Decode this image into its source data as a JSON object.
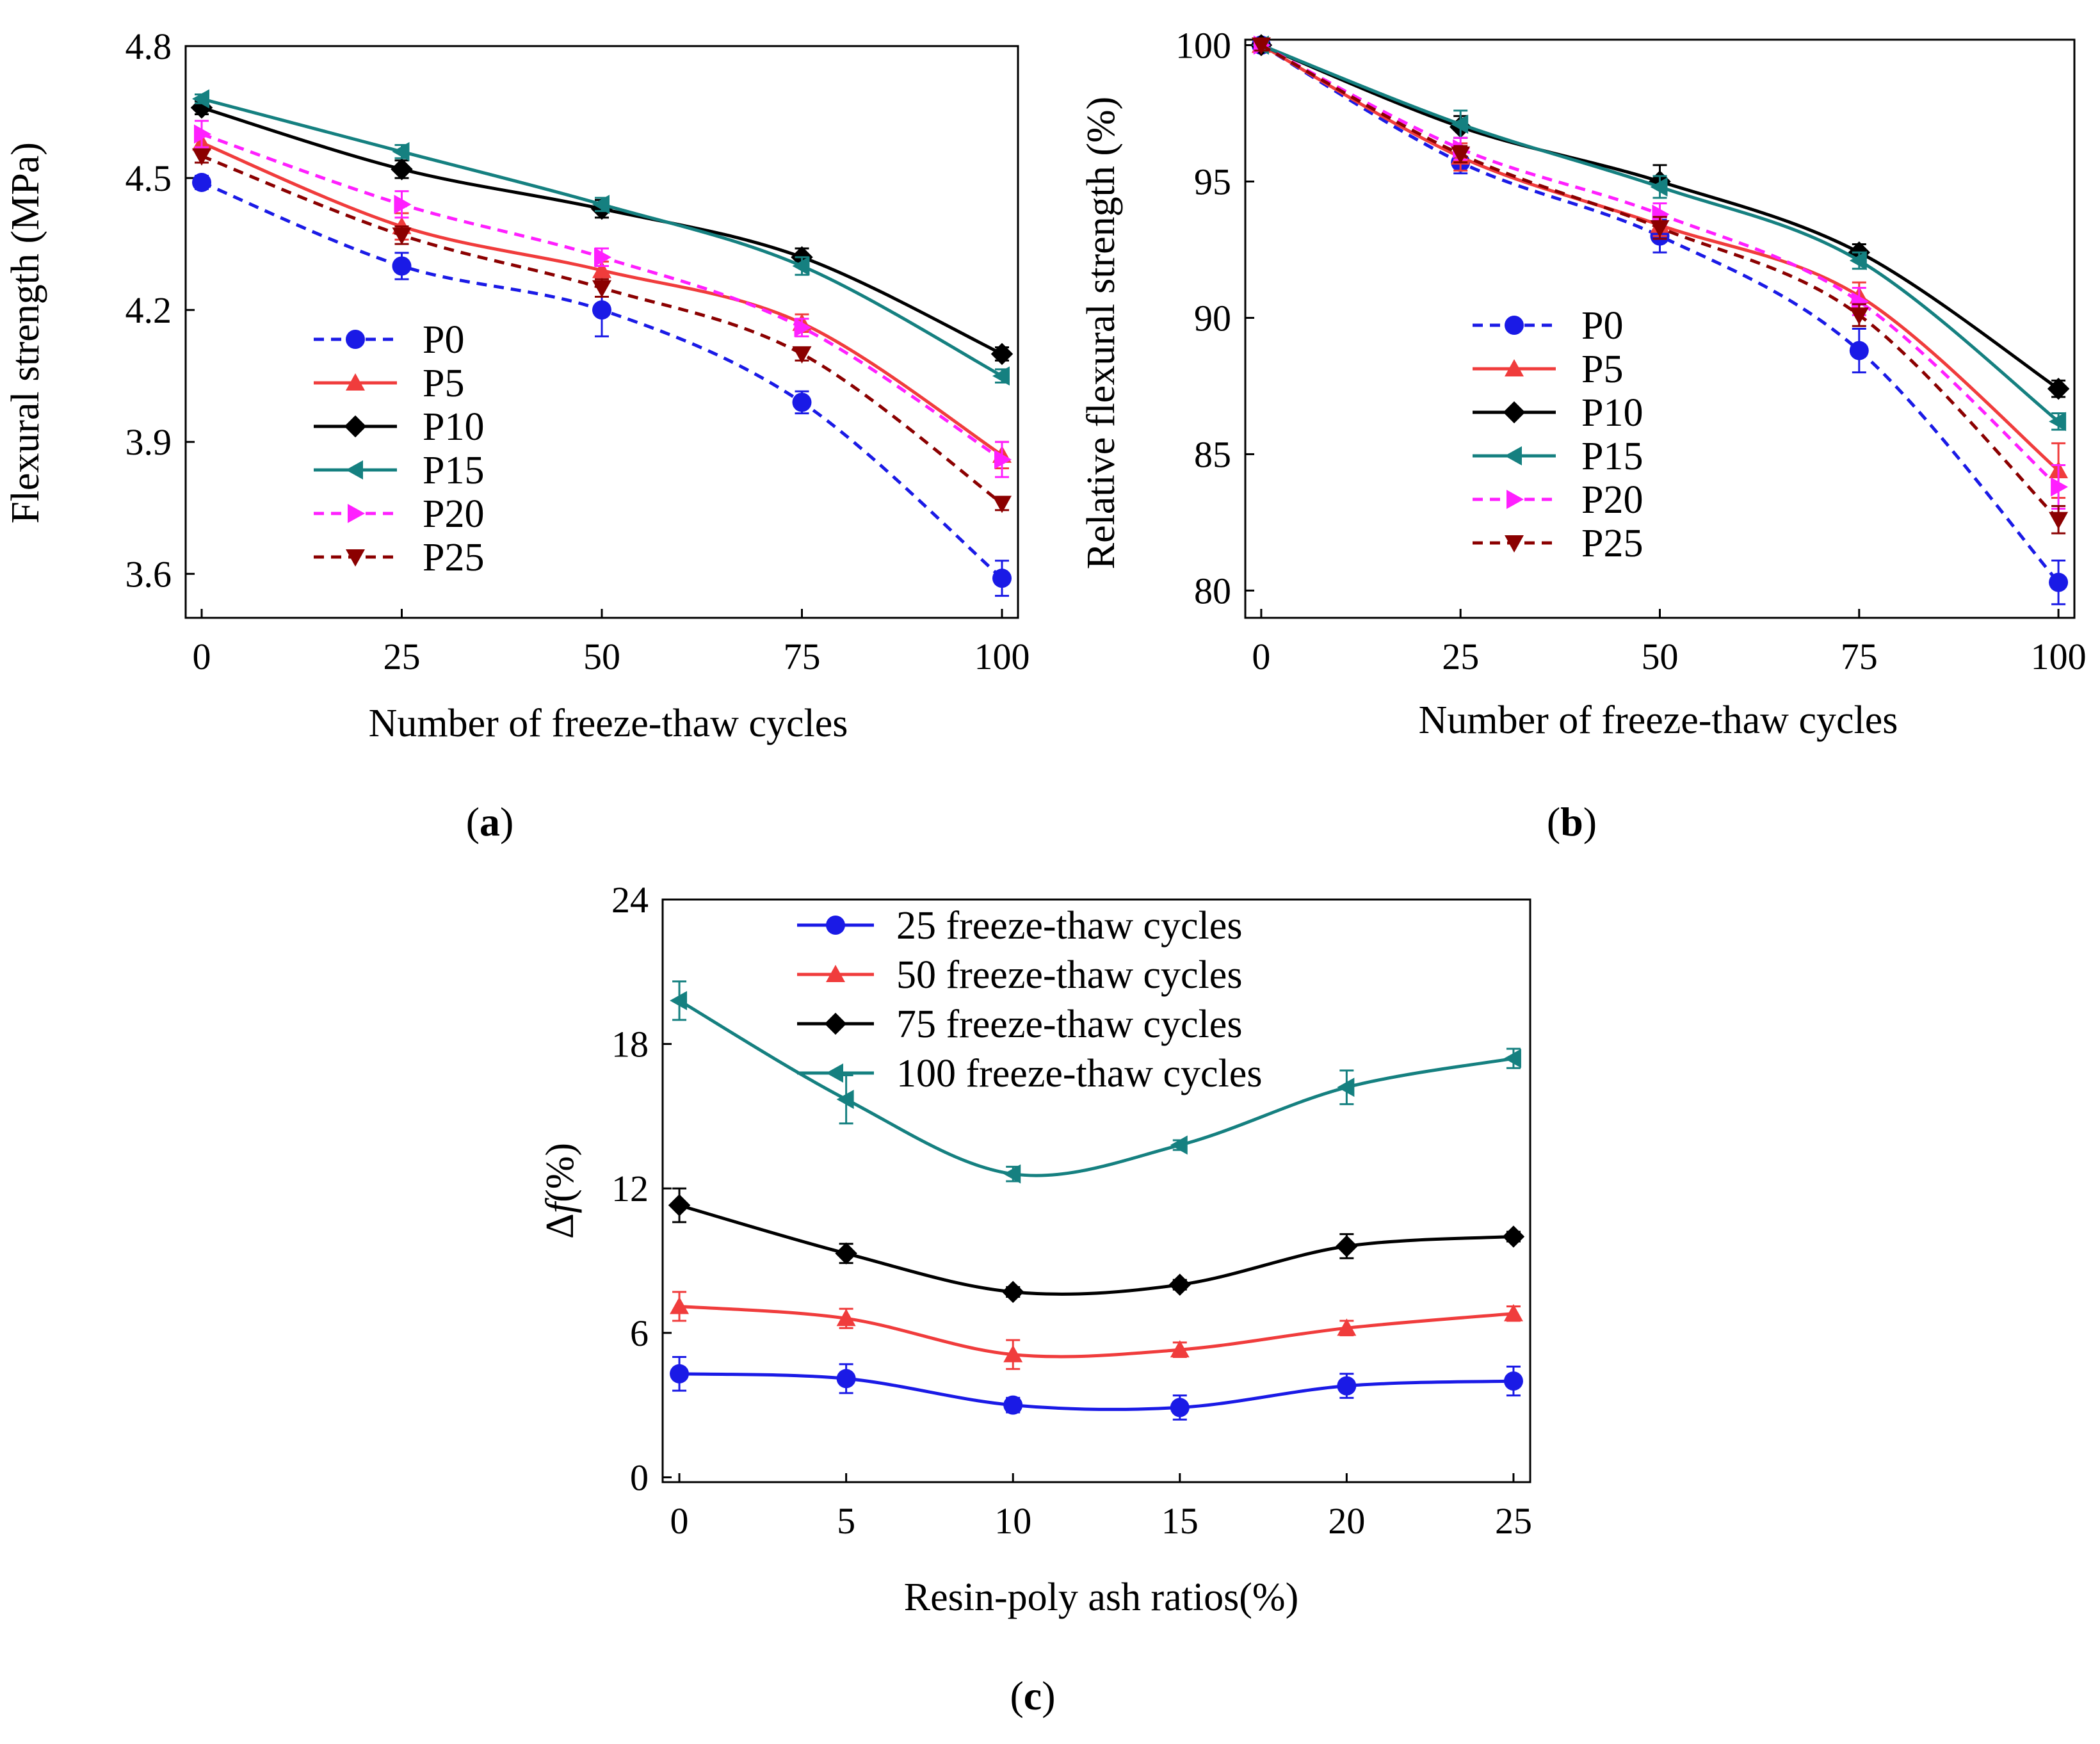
{
  "colors": {
    "P0": "#1a1ae6",
    "P5": "#f03c3c",
    "P10": "#000000",
    "P15": "#158080",
    "P20": "#ff1fff",
    "P25": "#8b0000"
  },
  "chart_data": [
    {
      "panel": "a",
      "type": "line",
      "xlabel": "Number of freeze-thaw cycles",
      "ylabel": "Flexural strength (MPa)",
      "xlim": [
        -2,
        102
      ],
      "ylim": [
        3.5,
        4.8
      ],
      "xticks": [
        0,
        25,
        50,
        75,
        100
      ],
      "yticks": [
        3.6,
        3.9,
        4.2,
        4.5,
        4.8
      ],
      "xtick_labels": [
        "0",
        "25",
        "50",
        "75",
        "100"
      ],
      "ytick_labels": [
        "3.6",
        "3.9",
        "4.2",
        "4.5",
        "4.8"
      ],
      "legend_position": "lower-left",
      "x": [
        0,
        25,
        50,
        75,
        100
      ],
      "series": [
        {
          "name": "P0",
          "color": "#1a1ae6",
          "marker": "circle",
          "dashed": true,
          "values": [
            4.49,
            4.3,
            4.2,
            3.99,
            3.59
          ],
          "errors": [
            0.015,
            0.03,
            0.06,
            0.025,
            0.04
          ]
        },
        {
          "name": "P5",
          "color": "#f03c3c",
          "marker": "triangle-up",
          "dashed": false,
          "values": [
            4.58,
            4.39,
            4.29,
            4.17,
            3.87
          ],
          "errors": [
            0.02,
            0.03,
            0.02,
            0.02,
            0.03
          ]
        },
        {
          "name": "P10",
          "color": "#000000",
          "marker": "diamond",
          "dashed": false,
          "values": [
            4.66,
            4.52,
            4.43,
            4.32,
            4.1
          ],
          "errors": [
            0.015,
            0.02,
            0.02,
            0.02,
            0.015
          ]
        },
        {
          "name": "P15",
          "color": "#158080",
          "marker": "triangle-left",
          "dashed": false,
          "values": [
            4.68,
            4.56,
            4.44,
            4.3,
            4.05
          ],
          "errors": [
            0.01,
            0.015,
            0.015,
            0.02,
            0.015
          ]
        },
        {
          "name": "P20",
          "color": "#ff1fff",
          "marker": "triangle-right",
          "dashed": true,
          "values": [
            4.6,
            4.44,
            4.32,
            4.16,
            3.86
          ],
          "errors": [
            0.03,
            0.03,
            0.02,
            0.02,
            0.04
          ]
        },
        {
          "name": "P25",
          "color": "#8b0000",
          "marker": "triangle-down",
          "dashed": true,
          "values": [
            4.55,
            4.37,
            4.25,
            4.1,
            3.76
          ],
          "errors": [
            0.015,
            0.02,
            0.02,
            0.015,
            0.015
          ]
        }
      ],
      "panel_label": "(a)"
    },
    {
      "panel": "b",
      "type": "line",
      "xlabel": "Number of freeze-thaw cycles",
      "ylabel": "Relative flexural strength (%)",
      "xlim": [
        -2,
        102
      ],
      "ylim": [
        79,
        100.2
      ],
      "xticks": [
        0,
        25,
        50,
        75,
        100
      ],
      "yticks": [
        80,
        85,
        90,
        95,
        100
      ],
      "xtick_labels": [
        "0",
        "25",
        "50",
        "75",
        "100"
      ],
      "ytick_labels": [
        "80",
        "85",
        "90",
        "95",
        "100"
      ],
      "legend_position": "lower-left",
      "x": [
        0,
        25,
        50,
        75,
        100
      ],
      "series": [
        {
          "name": "P0",
          "color": "#1a1ae6",
          "marker": "circle",
          "dashed": true,
          "values": [
            100,
            95.7,
            93.0,
            88.8,
            80.3
          ],
          "errors": [
            0.2,
            0.4,
            0.6,
            0.8,
            0.8
          ]
        },
        {
          "name": "P5",
          "color": "#f03c3c",
          "marker": "triangle-up",
          "dashed": false,
          "values": [
            100,
            95.9,
            93.4,
            90.8,
            84.4
          ],
          "errors": [
            0.2,
            0.5,
            0.4,
            0.5,
            1.0
          ]
        },
        {
          "name": "P10",
          "color": "#000000",
          "marker": "diamond",
          "dashed": false,
          "values": [
            100,
            97.0,
            95.0,
            92.4,
            87.4
          ],
          "errors": [
            0.2,
            0.4,
            0.6,
            0.3,
            0.3
          ]
        },
        {
          "name": "P15",
          "color": "#158080",
          "marker": "triangle-left",
          "dashed": false,
          "values": [
            100,
            97.1,
            94.8,
            92.1,
            86.2
          ],
          "errors": [
            0.2,
            0.5,
            0.4,
            0.3,
            0.3
          ]
        },
        {
          "name": "P20",
          "color": "#ff1fff",
          "marker": "triangle-right",
          "dashed": true,
          "values": [
            100,
            96.2,
            93.8,
            90.6,
            83.8
          ],
          "errors": [
            0.2,
            0.4,
            0.4,
            0.5,
            0.8
          ]
        },
        {
          "name": "P25",
          "color": "#8b0000",
          "marker": "triangle-down",
          "dashed": true,
          "values": [
            100,
            96.0,
            93.3,
            90.1,
            82.6
          ],
          "errors": [
            0.2,
            0.3,
            0.4,
            0.4,
            0.5
          ]
        }
      ],
      "panel_label": "(b)"
    },
    {
      "panel": "c",
      "type": "line",
      "xlabel": "Resin-poly ash ratios(%)",
      "ylabel_prefix": "Δ",
      "ylabel_italic": "f",
      "ylabel_suffix": "(%)",
      "xlim": [
        -0.5,
        25.5
      ],
      "ylim": [
        -0.2,
        24
      ],
      "xticks": [
        0,
        5,
        10,
        15,
        20,
        25
      ],
      "yticks": [
        0,
        6,
        12,
        18,
        24
      ],
      "xtick_labels": [
        "0",
        "5",
        "10",
        "15",
        "20",
        "25"
      ],
      "ytick_labels": [
        "0",
        "6",
        "12",
        "18",
        "24"
      ],
      "legend_position": "top-center",
      "x": [
        0,
        5,
        10,
        15,
        20,
        25
      ],
      "series": [
        {
          "name": "25 freeze-thaw cycles",
          "color": "#1a1ae6",
          "marker": "circle",
          "dashed": false,
          "values": [
            4.3,
            4.1,
            3.0,
            2.9,
            3.8,
            4.0
          ],
          "errors": [
            0.7,
            0.6,
            0.3,
            0.5,
            0.5,
            0.6
          ]
        },
        {
          "name": "50 freeze-thaw cycles",
          "color": "#f03c3c",
          "marker": "triangle-up",
          "dashed": false,
          "values": [
            7.1,
            6.6,
            5.1,
            5.3,
            6.2,
            6.8
          ],
          "errors": [
            0.6,
            0.4,
            0.6,
            0.3,
            0.3,
            0.3
          ]
        },
        {
          "name": "75 freeze-thaw cycles",
          "color": "#000000",
          "marker": "diamond",
          "dashed": false,
          "values": [
            11.3,
            9.3,
            7.7,
            8.0,
            9.6,
            10.0
          ],
          "errors": [
            0.7,
            0.4,
            0.2,
            0.2,
            0.5,
            0.2
          ]
        },
        {
          "name": "100 freeze-thaw cycles",
          "color": "#158080",
          "marker": "triangle-left",
          "dashed": false,
          "values": [
            19.8,
            15.7,
            12.6,
            13.8,
            16.2,
            17.4
          ],
          "errors": [
            0.8,
            1.0,
            0.3,
            0.2,
            0.7,
            0.4
          ]
        }
      ],
      "panel_label": "(c)"
    }
  ]
}
